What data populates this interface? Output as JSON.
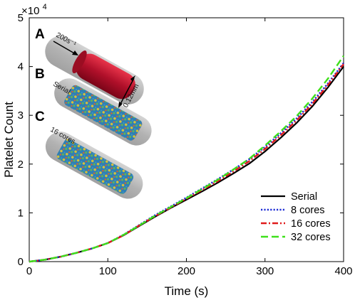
{
  "chart_data": {
    "type": "line",
    "title": "",
    "xlabel": "Time (s)",
    "ylabel": "Platelet Count",
    "y_multiplier_label": "×10",
    "y_multiplier_exponent": "4",
    "xlim": [
      0,
      400
    ],
    "ylim": [
      0,
      5
    ],
    "xticks": [
      0,
      100,
      200,
      300,
      400
    ],
    "yticks": [
      0,
      1,
      2,
      3,
      4,
      5
    ],
    "grid": false,
    "legend_position": "bottom-right",
    "series": [
      {
        "name": "Serial",
        "color": "#000000",
        "style": "solid",
        "x": [
          0,
          20,
          40,
          60,
          80,
          100,
          120,
          140,
          160,
          180,
          200,
          220,
          240,
          260,
          280,
          300,
          320,
          340,
          360,
          380,
          400
        ],
        "y": [
          0,
          0.04,
          0.1,
          0.18,
          0.27,
          0.38,
          0.54,
          0.73,
          0.92,
          1.1,
          1.27,
          1.44,
          1.62,
          1.81,
          2.01,
          2.26,
          2.54,
          2.84,
          3.18,
          3.57,
          4.0
        ]
      },
      {
        "name": "8 cores",
        "color": "#1f2fd6",
        "style": "dotted",
        "x": [
          0,
          20,
          40,
          60,
          80,
          100,
          120,
          140,
          160,
          180,
          200,
          220,
          240,
          260,
          280,
          300,
          320,
          340,
          360,
          380,
          400
        ],
        "y": [
          0,
          0.04,
          0.1,
          0.18,
          0.27,
          0.38,
          0.55,
          0.75,
          0.95,
          1.13,
          1.31,
          1.5,
          1.69,
          1.89,
          2.1,
          2.35,
          2.63,
          2.93,
          3.27,
          3.65,
          4.07
        ]
      },
      {
        "name": "16 cores",
        "color": "#e01b1b",
        "style": "dashdot",
        "x": [
          0,
          20,
          40,
          60,
          80,
          100,
          120,
          140,
          160,
          180,
          200,
          220,
          240,
          260,
          280,
          300,
          320,
          340,
          360,
          380,
          400
        ],
        "y": [
          0,
          0.04,
          0.1,
          0.18,
          0.27,
          0.38,
          0.54,
          0.74,
          0.93,
          1.11,
          1.29,
          1.47,
          1.65,
          1.85,
          2.06,
          2.31,
          2.59,
          2.89,
          3.23,
          3.62,
          4.05
        ]
      },
      {
        "name": "32 cores",
        "color": "#3ee01a",
        "style": "dashed",
        "x": [
          0,
          20,
          40,
          60,
          80,
          100,
          120,
          140,
          160,
          180,
          200,
          220,
          240,
          260,
          280,
          300,
          320,
          340,
          360,
          380,
          400
        ],
        "y": [
          0,
          0.04,
          0.1,
          0.18,
          0.27,
          0.38,
          0.55,
          0.74,
          0.94,
          1.12,
          1.3,
          1.49,
          1.68,
          1.89,
          2.11,
          2.38,
          2.67,
          2.98,
          3.34,
          3.75,
          4.22
        ]
      }
    ]
  },
  "inset": {
    "panel_a": {
      "letter": "A",
      "flow_label": "200s⁻¹",
      "diameter_label": "0.12mm"
    },
    "panel_b": {
      "letter": "B",
      "label": "Serial"
    },
    "panel_c": {
      "letter": "C",
      "label": "16 cores"
    }
  }
}
